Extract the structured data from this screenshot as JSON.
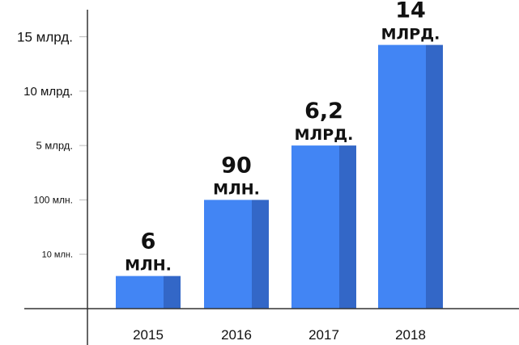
{
  "chart_data": {
    "type": "bar",
    "title": "",
    "xlabel": "",
    "ylabel": "",
    "y_scale": "ordinal (tick labels are not linear)",
    "y_tick_labels": [
      "10 млн.",
      "100 млн.",
      "5 млрд.",
      "10 млрд.",
      "15 млрд."
    ],
    "categories": [
      "2015",
      "2016",
      "2017",
      "2018"
    ],
    "values_text": [
      {
        "number": "6",
        "unit": "МЛН."
      },
      {
        "number": "90",
        "unit": "МЛН."
      },
      {
        "number": "6,2",
        "unit": "МЛРД."
      },
      {
        "number": "14",
        "unit": "МЛРД."
      }
    ],
    "values_absolute": [
      6000000,
      90000000,
      6200000000,
      14000000000
    ],
    "bar_levels_on_tick_scale": [
      0.6,
      2.0,
      3.0,
      4.85
    ],
    "grid": false,
    "legend": "none",
    "colors": {
      "bar_front": "#4285f4",
      "bar_side": "#3367c7",
      "axis": "#333333",
      "tick_mark": "#bbbbbb",
      "text": "#111111"
    }
  }
}
